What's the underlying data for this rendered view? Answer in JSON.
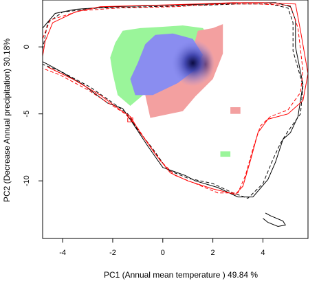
{
  "chart_data": {
    "type": "contour",
    "title": "",
    "xlabel": "PC1 (Annual mean temperature ) 49.84 %",
    "ylabel": "PC2 (Decrease Annual precipitation) 30.18%",
    "xlim": [
      -4.8,
      5.8
    ],
    "ylim": [
      -14.3,
      3.5
    ],
    "xticks": [
      -4,
      -2,
      0,
      2,
      4
    ],
    "yticks": [
      0,
      -5,
      -10
    ],
    "xtick_labels": [
      "-4",
      "-2",
      "0",
      "2",
      "4"
    ],
    "ytick_labels": [
      "0",
      "-5",
      "-10"
    ],
    "colors": {
      "green": "#9af59a",
      "pink": "#f3a0a0",
      "blue": "#8a8df0",
      "dark_center": "#0a0a40",
      "black_line": "#000000",
      "red_line": "#ff0000"
    },
    "series": [
      {
        "kind": "filled",
        "color": "green",
        "points": [
          [
            -1.6,
            1.2
          ],
          [
            -0.9,
            1.4
          ],
          [
            0,
            1.5
          ],
          [
            0.8,
            1.6
          ],
          [
            1.6,
            1.4
          ],
          [
            1.9,
            0.6
          ],
          [
            1.7,
            -0.4
          ],
          [
            1.2,
            -1.6
          ],
          [
            0.4,
            -2.6
          ],
          [
            -0.6,
            -3.3
          ],
          [
            -1.3,
            -4.4
          ],
          [
            -1.8,
            -3.6
          ],
          [
            -2.0,
            -2.0
          ],
          [
            -2.1,
            -0.8
          ],
          [
            -1.9,
            0.3
          ]
        ]
      },
      {
        "kind": "filled",
        "color": "pink",
        "points": [
          [
            1.4,
            1.2
          ],
          [
            2.0,
            1.4
          ],
          [
            2.4,
            1.7
          ],
          [
            2.4,
            -0.5
          ],
          [
            2.0,
            -2.4
          ],
          [
            1.3,
            -3.7
          ],
          [
            0.8,
            -4.8
          ],
          [
            -0.5,
            -5.3
          ],
          [
            -0.7,
            -3.6
          ],
          [
            0.3,
            -2.9
          ],
          [
            1.0,
            -1.5
          ]
        ]
      },
      {
        "kind": "filled",
        "color": "blue",
        "points": [
          [
            -0.3,
            0.9
          ],
          [
            0.4,
            1.0
          ],
          [
            1.2,
            0.6
          ],
          [
            1.6,
            -0.6
          ],
          [
            1.3,
            -1.7
          ],
          [
            0.6,
            -2.7
          ],
          [
            -0.4,
            -3.6
          ],
          [
            -1.1,
            -3.6
          ],
          [
            -1.3,
            -2.4
          ],
          [
            -1.0,
            -1.2
          ],
          [
            -0.7,
            0.2
          ]
        ]
      },
      {
        "kind": "filled",
        "color": "pink",
        "points": [
          [
            2.7,
            -4.5
          ],
          [
            3.1,
            -4.5
          ],
          [
            3.1,
            -5.0
          ],
          [
            2.7,
            -5.0
          ]
        ]
      },
      {
        "kind": "filled",
        "color": "green",
        "points": [
          [
            2.3,
            -7.8
          ],
          [
            2.7,
            -7.8
          ],
          [
            2.7,
            -8.2
          ],
          [
            2.3,
            -8.2
          ]
        ]
      },
      {
        "kind": "outline",
        "color": "black_line",
        "dash": false,
        "points": [
          [
            -4.8,
            -0.4
          ],
          [
            -4.8,
            1.4
          ],
          [
            -4.3,
            2.5
          ],
          [
            -3.5,
            2.8
          ],
          [
            -2.0,
            3.0
          ],
          [
            0,
            3.1
          ],
          [
            2.0,
            3.2
          ],
          [
            3.2,
            3.3
          ],
          [
            4.5,
            3.3
          ],
          [
            5.1,
            3.0
          ],
          [
            5.3,
            2.0
          ],
          [
            5.3,
            0
          ],
          [
            5.6,
            -2.8
          ],
          [
            5.4,
            -5.2
          ],
          [
            5.1,
            -6.4
          ],
          [
            4.8,
            -6.9
          ],
          [
            4.5,
            -8.6
          ],
          [
            4.2,
            -9.9
          ],
          [
            3.6,
            -11.2
          ],
          [
            3.0,
            -11.2
          ],
          [
            2.2,
            -10.5
          ],
          [
            1.3,
            -10.0
          ],
          [
            0.9,
            -9.6
          ],
          [
            0.0,
            -9.0
          ],
          [
            -0.6,
            -7.4
          ],
          [
            -1.2,
            -5.7
          ],
          [
            -1.6,
            -4.6
          ],
          [
            -2.2,
            -4.2
          ],
          [
            -3.2,
            -2.8
          ],
          [
            -4.3,
            -1.6
          ],
          [
            -4.8,
            -1.1
          ]
        ]
      },
      {
        "kind": "outline",
        "color": "black_line",
        "dash": true,
        "points": [
          [
            -4.8,
            -0.2
          ],
          [
            -4.6,
            1.8
          ],
          [
            -4.0,
            2.6
          ],
          [
            -2.6,
            2.9
          ],
          [
            -0.5,
            3.0
          ],
          [
            1.5,
            3.1
          ],
          [
            3.0,
            3.2
          ],
          [
            4.3,
            3.2
          ],
          [
            5.0,
            2.9
          ],
          [
            5.2,
            1.8
          ],
          [
            5.2,
            -0.3
          ],
          [
            5.6,
            -2.9
          ],
          [
            5.5,
            -5.0
          ],
          [
            5.0,
            -6.3
          ],
          [
            4.7,
            -7.2
          ],
          [
            4.4,
            -8.4
          ],
          [
            4.0,
            -10.2
          ],
          [
            3.4,
            -11.3
          ],
          [
            2.8,
            -10.9
          ],
          [
            2.0,
            -10.2
          ],
          [
            1.0,
            -9.8
          ],
          [
            0.2,
            -9.2
          ],
          [
            -0.4,
            -7.6
          ],
          [
            -1.0,
            -6.2
          ],
          [
            -1.4,
            -5.0
          ],
          [
            -1.9,
            -4.3
          ],
          [
            -2.9,
            -3.0
          ],
          [
            -4.1,
            -1.8
          ],
          [
            -4.8,
            -1.3
          ]
        ]
      },
      {
        "kind": "outline",
        "color": "red_line",
        "dash": false,
        "points": [
          [
            -4.8,
            -0.7
          ],
          [
            -4.7,
            0.4
          ],
          [
            -4.4,
            1.8
          ],
          [
            -3.5,
            2.6
          ],
          [
            -2.5,
            3.0
          ],
          [
            -0.5,
            3.1
          ],
          [
            1.4,
            3.2
          ],
          [
            2.8,
            3.3
          ],
          [
            4.0,
            3.3
          ],
          [
            5.3,
            3.2
          ],
          [
            5.5,
            1.2
          ],
          [
            5.8,
            -2.0
          ],
          [
            5.6,
            -4.0
          ],
          [
            5.0,
            -5.0
          ],
          [
            4.2,
            -5.4
          ],
          [
            3.8,
            -6.4
          ],
          [
            3.5,
            -8.5
          ],
          [
            3.2,
            -10.4
          ],
          [
            2.9,
            -11.0
          ],
          [
            2.0,
            -10.6
          ],
          [
            1.0,
            -10.0
          ],
          [
            0.3,
            -9.4
          ],
          [
            -0.3,
            -8.0
          ],
          [
            -0.9,
            -6.4
          ],
          [
            -1.3,
            -5.2
          ],
          [
            -1.7,
            -4.7
          ],
          [
            -2.5,
            -3.6
          ],
          [
            -3.6,
            -2.4
          ],
          [
            -4.6,
            -1.5
          ]
        ]
      },
      {
        "kind": "outline",
        "color": "red_line",
        "dash": true,
        "points": [
          [
            -4.8,
            -1.0
          ],
          [
            -4.8,
            0.6
          ],
          [
            -4.5,
            2.0
          ],
          [
            -3.3,
            2.7
          ],
          [
            -1.8,
            2.9
          ],
          [
            0.5,
            3.0
          ],
          [
            2.3,
            3.2
          ],
          [
            3.8,
            3.2
          ],
          [
            5.1,
            3.1
          ],
          [
            5.4,
            1.4
          ],
          [
            5.6,
            -1.8
          ],
          [
            5.5,
            -3.4
          ],
          [
            5.0,
            -4.7
          ],
          [
            4.3,
            -5.2
          ],
          [
            3.9,
            -5.9
          ],
          [
            3.6,
            -7.6
          ],
          [
            3.3,
            -9.6
          ],
          [
            3.0,
            -10.9
          ],
          [
            2.2,
            -10.9
          ],
          [
            1.3,
            -10.2
          ],
          [
            0.5,
            -9.6
          ],
          [
            -0.1,
            -8.5
          ],
          [
            -0.7,
            -6.9
          ],
          [
            -1.1,
            -5.8
          ],
          [
            -1.5,
            -5.0
          ],
          [
            -2.0,
            -4.4
          ],
          [
            -3.0,
            -3.2
          ],
          [
            -4.1,
            -2.1
          ],
          [
            -4.8,
            -1.6
          ]
        ]
      },
      {
        "kind": "outline",
        "color": "black_line",
        "dash": false,
        "points": [
          [
            4.1,
            -12.4
          ],
          [
            4.3,
            -12.6
          ],
          [
            4.8,
            -13.0
          ],
          [
            4.9,
            -13.3
          ],
          [
            4.6,
            -13.4
          ],
          [
            4.2,
            -13.1
          ],
          [
            4.0,
            -12.8
          ]
        ]
      },
      {
        "kind": "outline",
        "color": "red_line",
        "dash": false,
        "points": [
          [
            -1.4,
            -5.3
          ],
          [
            -1.2,
            -5.3
          ],
          [
            -1.2,
            -5.6
          ],
          [
            -1.4,
            -5.6
          ],
          [
            -1.4,
            -5.3
          ]
        ]
      }
    ]
  }
}
